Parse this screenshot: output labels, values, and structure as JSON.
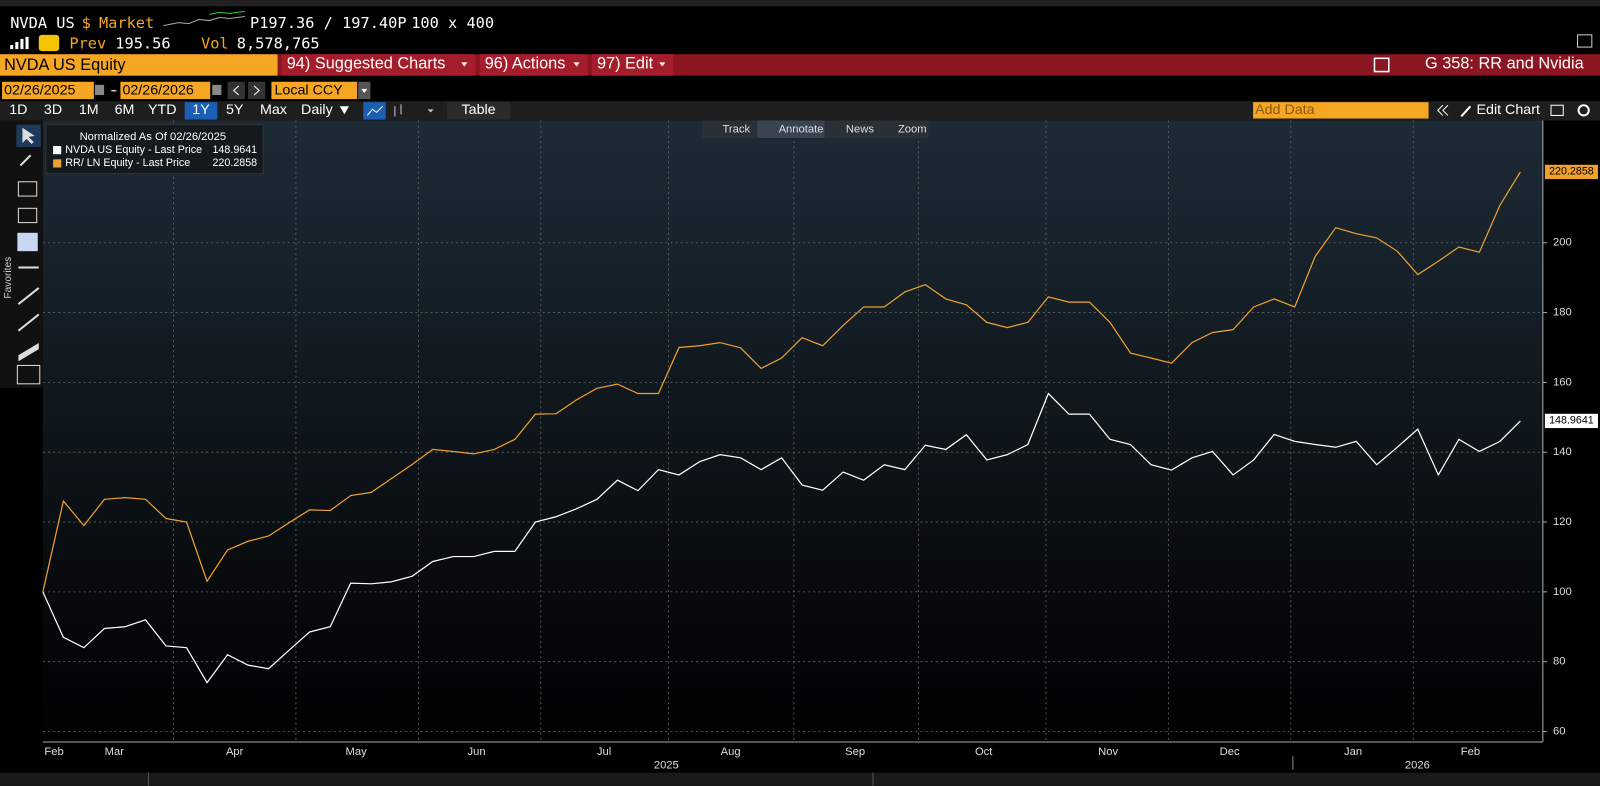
{
  "header": {
    "ticker": "NVDA US",
    "currency": "$",
    "market": "Market",
    "quote": "P197.36 / 197.40P",
    "size": "100 x 400",
    "prev_label": "Prev",
    "prev": "195.56",
    "vol_label": "Vol",
    "vol": "8,578,765"
  },
  "menu": {
    "security": "NVDA US Equity",
    "items": [
      "94) Suggested Charts",
      "96) Actions",
      "97) Edit"
    ],
    "chart_name": "G 358: RR and Nvidia"
  },
  "range": {
    "start": "02/26/2025",
    "end": "02/26/2026",
    "currency": "Local CCY"
  },
  "periods": [
    "1D",
    "3D",
    "1M",
    "6M",
    "YTD",
    "1Y",
    "5Y",
    "Max"
  ],
  "frequency": "Daily",
  "table_button": "Table",
  "add_data": "Add Data",
  "edit_chart": "Edit Chart",
  "chart_tools": [
    "Track",
    "Annotate",
    "News",
    "Zoom"
  ],
  "sidebar": "Favorites",
  "chart_data": {
    "type": "line",
    "legend_title": "Normalized As Of 02/26/2025",
    "series": [
      {
        "name": "NVDA US Equity - Last Price",
        "color": "#ffffff",
        "values": [
          100,
          87,
          84,
          89.5,
          90,
          92,
          84.5,
          84,
          74,
          82,
          79,
          78,
          83.3,
          88.5,
          90,
          102.5,
          102.3,
          102.9,
          104.5,
          108.7,
          110.1,
          110.1,
          111.6,
          111.6,
          120,
          121.5,
          123.8,
          126.5,
          132,
          129,
          135,
          133.5,
          137.3,
          139.3,
          138.4,
          135,
          138.4,
          130.6,
          129.1,
          134.3,
          132,
          136.4,
          135,
          142,
          140.8,
          145,
          137.8,
          139.3,
          142.2,
          156.8,
          150.9,
          150.9,
          143.7,
          142.2,
          136.4,
          134.9,
          138.4,
          140.2,
          133.5,
          137.8,
          145.1,
          143.1,
          142.2,
          141.4,
          143.1,
          136.4,
          141.4,
          146.6,
          133.5,
          143.7,
          140.2,
          143.1,
          148.9641
        ]
      },
      {
        "name": "RR/ LN Equity - Last Price",
        "color": "#f0a030",
        "values": [
          100,
          126,
          119,
          126.5,
          127,
          126.5,
          121,
          120,
          103,
          112,
          114.5,
          116,
          119.8,
          123.5,
          123.3,
          127.6,
          128.5,
          132.5,
          136.5,
          140.8,
          140.2,
          139.5,
          140.8,
          143.7,
          150.9,
          151,
          155,
          158.3,
          159.5,
          156.8,
          156.8,
          170,
          170.5,
          171.4,
          169.9,
          164,
          167,
          172.8,
          170.5,
          176.3,
          181.6,
          181.6,
          185.9,
          188,
          183.9,
          182.2,
          177.2,
          175.7,
          177.2,
          184.5,
          183,
          183,
          177.2,
          168.4,
          167,
          165.5,
          171.4,
          174.3,
          175.1,
          181.6,
          183.9,
          181.6,
          196.1,
          204.3,
          202.6,
          201.4,
          197.6,
          190.9,
          194.7,
          198.8,
          197.3,
          210.7,
          220.2858
        ]
      }
    ],
    "ylim": [
      57,
      235
    ],
    "yticks": [
      60,
      80,
      100,
      120,
      140,
      160,
      180,
      200
    ],
    "grid": true,
    "months": [
      "Feb",
      "Mar",
      "Apr",
      "May",
      "Jun",
      "Jul",
      "Aug",
      "Sep",
      "Oct",
      "Nov",
      "Dec",
      "Jan",
      "Feb"
    ],
    "years": [
      "2025",
      "2026"
    ]
  }
}
